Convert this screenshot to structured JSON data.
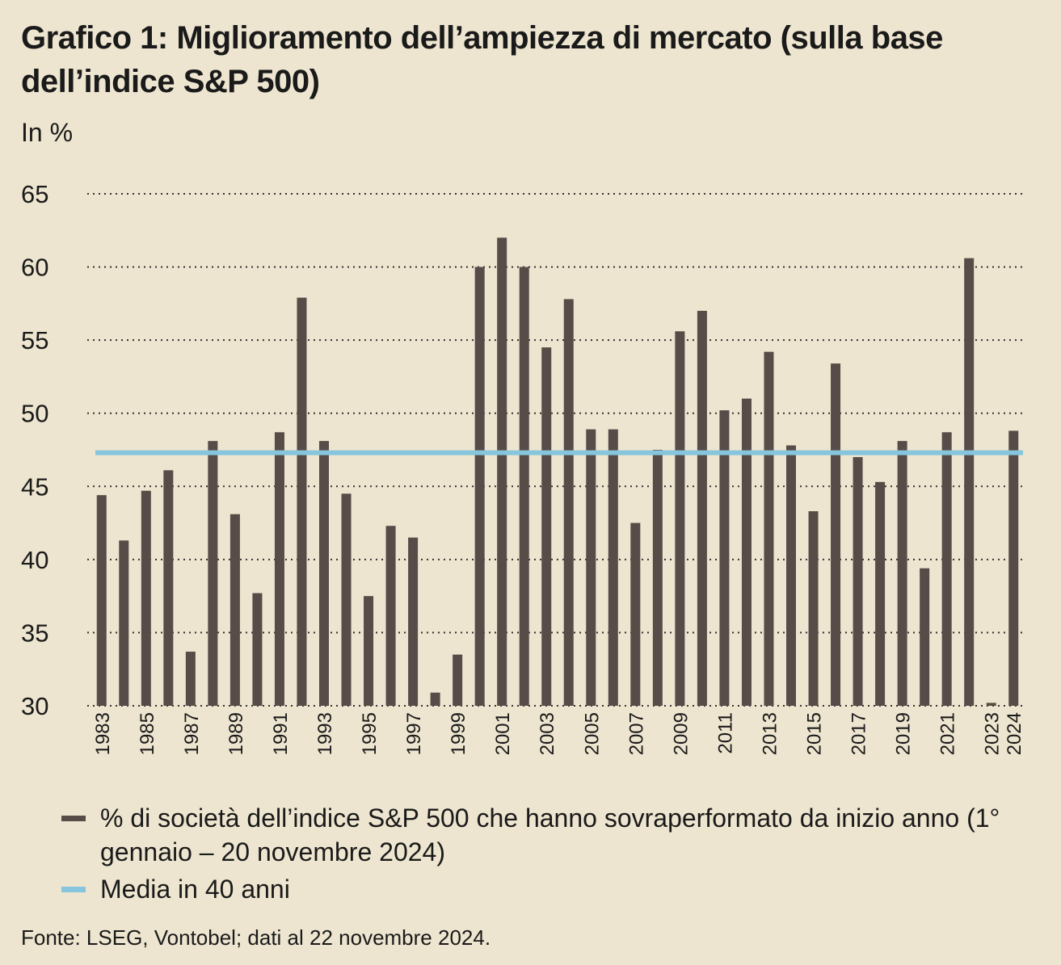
{
  "chart_data": {
    "type": "bar",
    "title": "Grafico 1: Miglioramento dell’ampiezza di mercato (sulla base dell’indice S&P 500)",
    "y_label": "In %",
    "source": "Fonte: LSEG, Vontobel; dati al 22 novembre 2024.",
    "categories": [
      "1983",
      null,
      "1985",
      null,
      "1987",
      null,
      "1989",
      null,
      "1991",
      null,
      "1993",
      null,
      "1995",
      null,
      "1997",
      null,
      "1999",
      null,
      "2001",
      null,
      "2003",
      null,
      "2005",
      null,
      "2007",
      null,
      "2009",
      null,
      "2011",
      null,
      "2013",
      null,
      "2015",
      null,
      "2017",
      null,
      "2019",
      null,
      "2021",
      null,
      "2023",
      "2024"
    ],
    "series": [
      {
        "name": "% di società dell’indice S&P 500 che hanno sovraperformato da inizio anno (1° gennaio – 20 novembre 2024)",
        "color": "#574c47",
        "values": [
          44.4,
          41.3,
          44.7,
          46.1,
          33.7,
          48.1,
          43.1,
          37.7,
          48.7,
          57.9,
          48.1,
          44.5,
          37.5,
          42.3,
          41.5,
          30.9,
          33.5,
          60.0,
          62.0,
          60.0,
          54.5,
          57.8,
          48.9,
          48.9,
          42.5,
          47.5,
          55.6,
          57.0,
          50.2,
          51.0,
          54.2,
          47.8,
          43.3,
          53.4,
          47.0,
          45.3,
          48.1,
          39.4,
          48.7,
          60.6,
          30.2,
          48.8
        ]
      }
    ],
    "reference_line": {
      "name": "Media in 40 anni",
      "color": "#86c5dc",
      "value": 47.3
    },
    "ylim": [
      30,
      65
    ],
    "yticks": [
      30,
      35,
      40,
      45,
      50,
      55,
      60,
      65
    ],
    "grid": true
  }
}
